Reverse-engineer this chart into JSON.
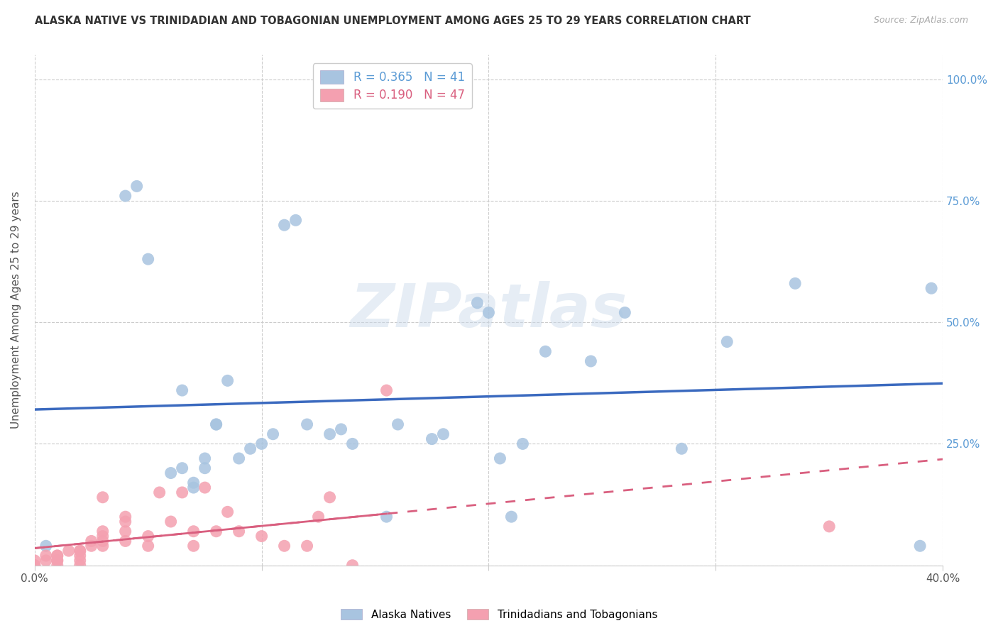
{
  "title": "ALASKA NATIVE VS TRINIDADIAN AND TOBAGONIAN UNEMPLOYMENT AMONG AGES 25 TO 29 YEARS CORRELATION CHART",
  "source": "Source: ZipAtlas.com",
  "ylabel": "Unemployment Among Ages 25 to 29 years",
  "xlim": [
    0.0,
    0.4
  ],
  "ylim": [
    0.0,
    1.05
  ],
  "alaska_R": 0.365,
  "alaska_N": 41,
  "trini_R": 0.19,
  "trini_N": 47,
  "alaska_color": "#a8c4e0",
  "trini_color": "#f4a0b0",
  "alaska_line_color": "#3b6abf",
  "trini_line_color": "#d95f7f",
  "watermark": "ZIPatlas",
  "alaska_x": [
    0.005,
    0.04,
    0.045,
    0.05,
    0.06,
    0.065,
    0.065,
    0.07,
    0.07,
    0.075,
    0.075,
    0.08,
    0.08,
    0.085,
    0.09,
    0.095,
    0.1,
    0.105,
    0.11,
    0.115,
    0.12,
    0.13,
    0.135,
    0.14,
    0.155,
    0.16,
    0.175,
    0.18,
    0.195,
    0.2,
    0.205,
    0.21,
    0.215,
    0.225,
    0.245,
    0.26,
    0.285,
    0.305,
    0.335,
    0.39,
    0.395
  ],
  "alaska_y": [
    0.04,
    0.76,
    0.78,
    0.63,
    0.19,
    0.2,
    0.36,
    0.16,
    0.17,
    0.2,
    0.22,
    0.29,
    0.29,
    0.38,
    0.22,
    0.24,
    0.25,
    0.27,
    0.7,
    0.71,
    0.29,
    0.27,
    0.28,
    0.25,
    0.1,
    0.29,
    0.26,
    0.27,
    0.54,
    0.52,
    0.22,
    0.1,
    0.25,
    0.44,
    0.42,
    0.52,
    0.24,
    0.46,
    0.58,
    0.04,
    0.57
  ],
  "trini_x": [
    0.0,
    0.0,
    0.0,
    0.0,
    0.005,
    0.005,
    0.01,
    0.01,
    0.01,
    0.01,
    0.01,
    0.015,
    0.02,
    0.02,
    0.02,
    0.02,
    0.02,
    0.025,
    0.025,
    0.03,
    0.03,
    0.03,
    0.03,
    0.03,
    0.04,
    0.04,
    0.04,
    0.04,
    0.05,
    0.05,
    0.055,
    0.06,
    0.065,
    0.07,
    0.07,
    0.075,
    0.08,
    0.085,
    0.09,
    0.1,
    0.11,
    0.12,
    0.125,
    0.13,
    0.14,
    0.155,
    0.35
  ],
  "trini_y": [
    0.0,
    0.0,
    0.0,
    0.01,
    0.01,
    0.02,
    0.0,
    0.01,
    0.01,
    0.02,
    0.02,
    0.03,
    0.0,
    0.01,
    0.02,
    0.03,
    0.03,
    0.04,
    0.05,
    0.04,
    0.05,
    0.06,
    0.07,
    0.14,
    0.05,
    0.07,
    0.09,
    0.1,
    0.04,
    0.06,
    0.15,
    0.09,
    0.15,
    0.04,
    0.07,
    0.16,
    0.07,
    0.11,
    0.07,
    0.06,
    0.04,
    0.04,
    0.1,
    0.14,
    0.0,
    0.36,
    0.08
  ],
  "ytick_values": [
    0.0,
    0.25,
    0.5,
    0.75,
    1.0
  ],
  "ytick_labels": [
    "",
    "25.0%",
    "50.0%",
    "75.0%",
    "100.0%"
  ],
  "xtick_values": [
    0.0,
    0.1,
    0.2,
    0.3,
    0.4
  ],
  "xtick_labels_shown": [
    "0.0%",
    "",
    "",
    "",
    "40.0%"
  ]
}
